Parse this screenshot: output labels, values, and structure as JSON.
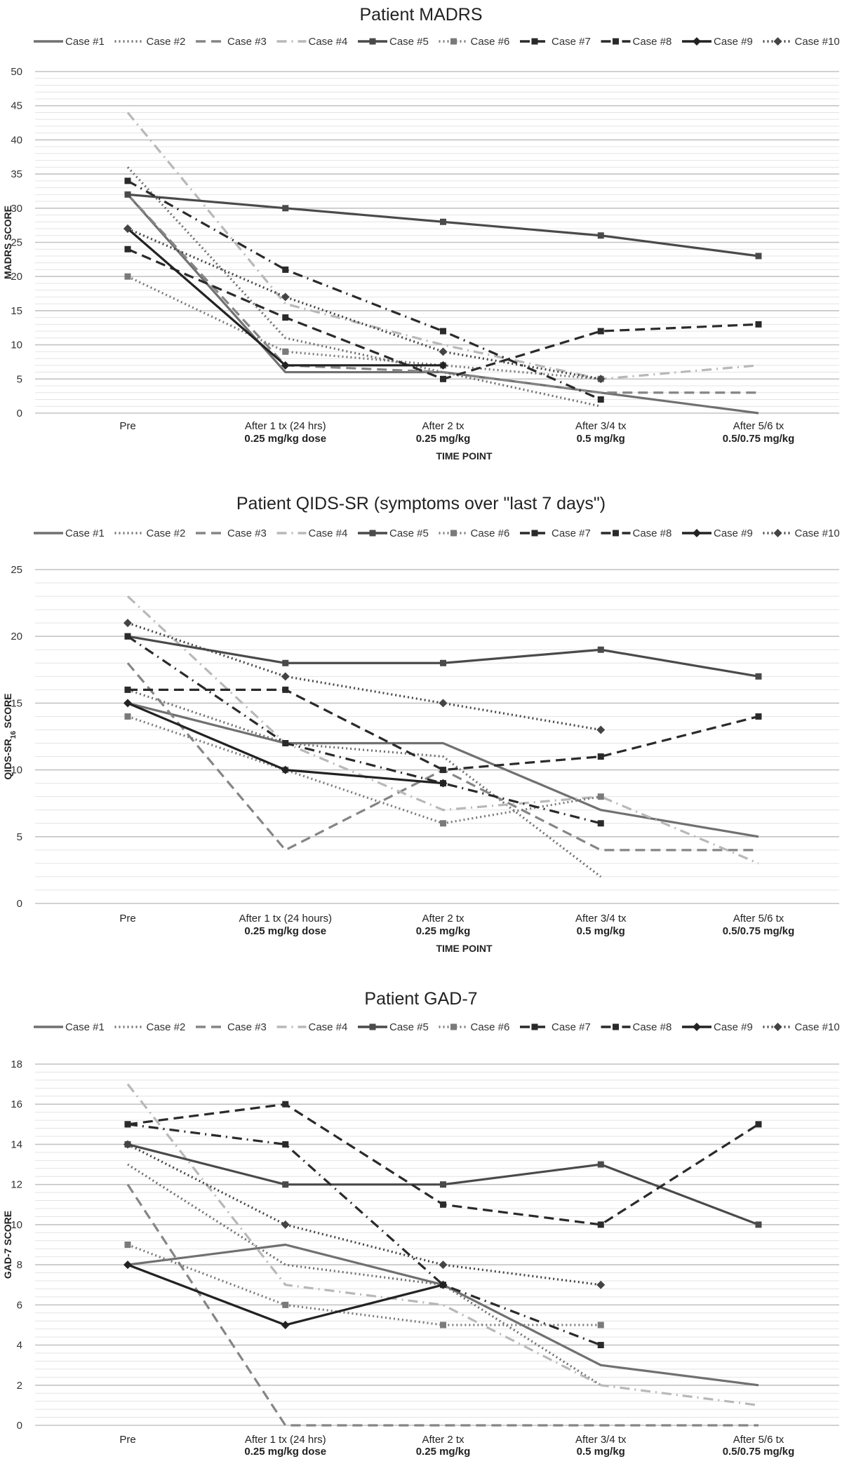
{
  "chart_data": [
    {
      "type": "line",
      "title": "Patient MADRS",
      "xlabel": "TIME POINT",
      "ylabel": "MADRS SCORE",
      "ylim": [
        0,
        50
      ],
      "yticks": [
        0,
        5,
        10,
        15,
        20,
        25,
        30,
        35,
        40,
        45,
        50
      ],
      "minor_step": 1,
      "grid": true,
      "legend": "top",
      "categories": [
        [
          "Pre",
          ""
        ],
        [
          "After 1 tx (24 hrs)",
          "0.25 mg/kg dose"
        ],
        [
          "After 2 tx",
          "0.25 mg/kg"
        ],
        [
          "After 3/4 tx",
          "0.5 mg/kg"
        ],
        [
          "After 5/6 tx",
          "0.5/0.75 mg/kg"
        ]
      ],
      "series": [
        {
          "name": "Case #1",
          "values": [
            32,
            6,
            6,
            3,
            0
          ]
        },
        {
          "name": "Case #2",
          "values": [
            36,
            11,
            6,
            1,
            null
          ]
        },
        {
          "name": "Case #3",
          "values": [
            32,
            7,
            6,
            3,
            3
          ]
        },
        {
          "name": "Case #4",
          "values": [
            44,
            16,
            10,
            5,
            7
          ]
        },
        {
          "name": "Case #5",
          "values": [
            32,
            30,
            28,
            26,
            23
          ]
        },
        {
          "name": "Case #6",
          "values": [
            20,
            9,
            7,
            5,
            null
          ]
        },
        {
          "name": "Case #7",
          "values": [
            24,
            14,
            5,
            12,
            13
          ]
        },
        {
          "name": "Case #8",
          "values": [
            34,
            21,
            12,
            2,
            null
          ]
        },
        {
          "name": "Case #9",
          "values": [
            27,
            7,
            7,
            null,
            null
          ]
        },
        {
          "name": "Case #10",
          "values": [
            27,
            17,
            9,
            5,
            null
          ]
        }
      ]
    },
    {
      "type": "line",
      "title": "Patient QIDS-SR (symptoms over \"last 7 days\")",
      "xlabel": "TIME POINT",
      "ylabel": "QIDS-SR",
      "ylabel_sub": "16",
      "ylabel_suffix": " SCORE",
      "ylim": [
        0,
        25
      ],
      "yticks": [
        0,
        5,
        10,
        15,
        20,
        25
      ],
      "minor_step": 1,
      "grid": true,
      "legend": "top",
      "categories": [
        [
          "Pre",
          ""
        ],
        [
          "After 1 tx (24 hours)",
          "0.25 mg/kg dose"
        ],
        [
          "After 2 tx",
          "0.25 mg/kg"
        ],
        [
          "After 3/4 tx",
          "0.5 mg/kg"
        ],
        [
          "After 5/6 tx",
          "0.5/0.75 mg/kg"
        ]
      ],
      "series": [
        {
          "name": "Case #1",
          "values": [
            15,
            12,
            12,
            7,
            5
          ]
        },
        {
          "name": "Case #2",
          "values": [
            16,
            12,
            11,
            2,
            null
          ]
        },
        {
          "name": "Case #3",
          "values": [
            18,
            4,
            10,
            4,
            4
          ]
        },
        {
          "name": "Case #4",
          "values": [
            23,
            12,
            7,
            8,
            3
          ]
        },
        {
          "name": "Case #5",
          "values": [
            20,
            18,
            18,
            19,
            17
          ]
        },
        {
          "name": "Case #6",
          "values": [
            14,
            10,
            6,
            8,
            null
          ]
        },
        {
          "name": "Case #7",
          "values": [
            16,
            16,
            10,
            11,
            14
          ]
        },
        {
          "name": "Case #8",
          "values": [
            20,
            12,
            9,
            6,
            null
          ]
        },
        {
          "name": "Case #9",
          "values": [
            15,
            10,
            9,
            null,
            null
          ]
        },
        {
          "name": "Case #10",
          "values": [
            21,
            17,
            15,
            13,
            null
          ]
        }
      ]
    },
    {
      "type": "line",
      "title": "Patient GAD-7",
      "xlabel": "TIME POINT",
      "ylabel": "GAD-7 SCORE",
      "ylim": [
        0,
        18
      ],
      "yticks": [
        0,
        2,
        4,
        6,
        8,
        10,
        12,
        14,
        16,
        18
      ],
      "minor_step": 0.4,
      "grid": true,
      "legend": "top",
      "categories": [
        [
          "Pre",
          ""
        ],
        [
          "After 1 tx (24 hrs)",
          "0.25 mg/kg dose"
        ],
        [
          "After 2 tx",
          "0.25 mg/kg"
        ],
        [
          "After 3/4 tx",
          "0.5 mg/kg"
        ],
        [
          "After 5/6 tx",
          "0.5/0.75 mg/kg"
        ]
      ],
      "series": [
        {
          "name": "Case #1",
          "values": [
            8,
            9,
            7,
            3,
            2
          ]
        },
        {
          "name": "Case #2",
          "values": [
            13,
            8,
            7,
            2,
            null
          ]
        },
        {
          "name": "Case #3",
          "values": [
            12,
            0,
            0,
            0,
            0
          ]
        },
        {
          "name": "Case #4",
          "values": [
            17,
            7,
            6,
            2,
            1
          ]
        },
        {
          "name": "Case #5",
          "values": [
            14,
            12,
            12,
            13,
            10
          ]
        },
        {
          "name": "Case #6",
          "values": [
            9,
            6,
            5,
            5,
            null
          ]
        },
        {
          "name": "Case #7",
          "values": [
            15,
            16,
            11,
            10,
            15
          ]
        },
        {
          "name": "Case #8",
          "values": [
            15,
            14,
            7,
            4,
            null
          ]
        },
        {
          "name": "Case #9",
          "values": [
            8,
            5,
            7,
            null,
            null
          ]
        },
        {
          "name": "Case #10",
          "values": [
            14,
            10,
            8,
            7,
            null
          ]
        }
      ]
    }
  ],
  "series_styles": [
    {
      "color": "#707070",
      "line": "solid",
      "marker": "none"
    },
    {
      "color": "#707070",
      "line": "dotted",
      "marker": "none"
    },
    {
      "color": "#858585",
      "line": "dashed",
      "marker": "none"
    },
    {
      "color": "#b8b8b8",
      "line": "dash-dot",
      "marker": "none"
    },
    {
      "color": "#4a4a4a",
      "line": "solid",
      "marker": "square"
    },
    {
      "color": "#7a7a7a",
      "line": "dotted",
      "marker": "square"
    },
    {
      "color": "#2a2a2a",
      "line": "dashed",
      "marker": "square"
    },
    {
      "color": "#2a2a2a",
      "line": "dash-dot",
      "marker": "square"
    },
    {
      "color": "#222222",
      "line": "solid",
      "marker": "diamond"
    },
    {
      "color": "#444444",
      "line": "dotted",
      "marker": "diamond"
    }
  ]
}
